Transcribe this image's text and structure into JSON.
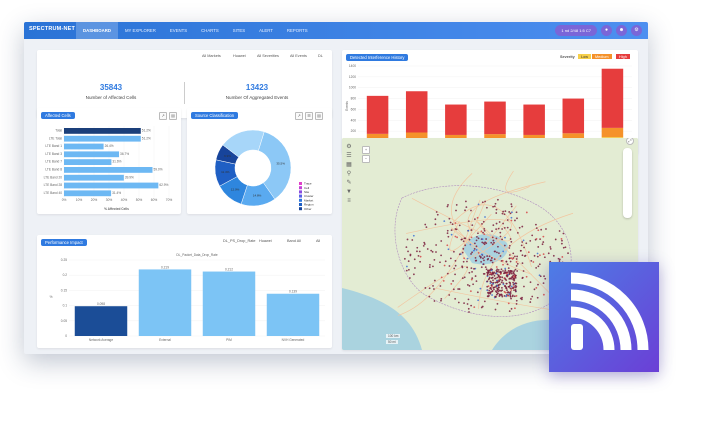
{
  "app": {
    "brand": "SPECTRUM-NET"
  },
  "nav": [
    {
      "label": "DASHBOARD",
      "active": true
    },
    {
      "label": "MY EXPLORER"
    },
    {
      "label": "EVENTS"
    },
    {
      "label": "CHARTS"
    },
    {
      "label": "SITES"
    },
    {
      "label": "ALERT"
    },
    {
      "label": "REPORTS"
    }
  ],
  "topright": {
    "date_pill": "1 nd 2/48 1:5 C7",
    "icons": [
      "bell-icon",
      "user-icon",
      "settings-icon"
    ]
  },
  "kpi": {
    "filters": [
      "All Markets",
      "Huawei",
      "All Severities",
      "All Events",
      "DL"
    ],
    "affected_cells": {
      "value": "35843",
      "label": "Number of Affected Cells"
    },
    "aggregated_events": {
      "value": "13423",
      "label": "Number Of Aggregated Events"
    }
  },
  "affected_cells_panel": {
    "title": "Affected Cells",
    "xlabel": "% Affected Cells",
    "chart_data": {
      "type": "bar",
      "orientation": "horizontal",
      "categories": [
        "Total",
        "LTE Total",
        "LTE Band 1",
        "LTE Band 3",
        "LTE Band 7",
        "LTE Band 8",
        "LTE Band 20",
        "LTE Band 28",
        "LTE Band 40"
      ],
      "values": [
        51.2,
        51.2,
        26.4,
        36.7,
        31.6,
        59.0,
        39.9,
        62.9,
        31.4
      ],
      "value_labels": [
        "51.2%",
        "51.2%",
        "26.4%",
        "36.7%",
        "31.6%",
        "59.0%",
        "39.9%",
        "62.9%",
        "31.4%"
      ],
      "xticks": [
        "0%",
        "10%",
        "20%",
        "30%",
        "40%",
        "50%",
        "60%",
        "70%"
      ],
      "xlim": [
        0,
        70
      ]
    }
  },
  "source_panel": {
    "title": "Source Classification",
    "chart_data": {
      "type": "pie",
      "slices": [
        {
          "label": "Trace",
          "value": 35.5,
          "display": "35.5%",
          "color": "#8cc8f6"
        },
        {
          "label": "Cell",
          "value": 14.8,
          "display": "14.8%",
          "color": "#5aaaf0"
        },
        {
          "label": "Site",
          "value": 12.0,
          "display": "12.0%",
          "color": "#2e86de"
        },
        {
          "label": "Cluster",
          "value": 11.4,
          "display": "11.4%",
          "color": "#1f5fc4"
        },
        {
          "label": "Market",
          "value": 6.9,
          "display": "6.9%",
          "color": "#17449b"
        },
        {
          "label": "Other",
          "value": 19.4,
          "display": "",
          "color": "#a7d6f9"
        }
      ],
      "legend": [
        "Trace",
        "Cell",
        "Site",
        "Cluster",
        "Market",
        "Region",
        "Other"
      ],
      "legend_colors": [
        "#e040c8",
        "#c43fd6",
        "#8a4be0",
        "#5a5ee6",
        "#2d78e0",
        "#1f5fc4",
        "#17449b"
      ]
    }
  },
  "interference_panel": {
    "title": "Detected Interference History",
    "severity_label": "Severity",
    "severity_levels": [
      {
        "label": "Low",
        "color": "#f6cf4a"
      },
      {
        "label": "Medium",
        "color": "#f5922a"
      },
      {
        "label": "High",
        "color": "#e63d3d"
      }
    ],
    "ylabel": "Events",
    "chart_data": {
      "type": "bar",
      "stacked": true,
      "categories": [
        "08 Jan",
        "09 Jan",
        "10 Jan",
        "11 Jan",
        "12 Jan",
        "13 Jan",
        "14 Jan"
      ],
      "series": [
        {
          "name": "Low",
          "values": [
            50,
            60,
            45,
            50,
            45,
            55,
            90
          ]
        },
        {
          "name": "Medium",
          "values": [
            100,
            115,
            85,
            95,
            85,
            105,
            170
          ]
        },
        {
          "name": "High",
          "values": [
            700,
            760,
            560,
            600,
            560,
            640,
            1090
          ]
        }
      ],
      "yticks": [
        "0",
        "200",
        "400",
        "600",
        "800",
        "1000",
        "1200",
        "1400"
      ],
      "ylim": [
        0,
        1400
      ]
    }
  },
  "performance_panel": {
    "title": "Performance Impact",
    "filters": [
      "DL_PS_Drop_Rate",
      "Huawei",
      "Band All",
      "All"
    ],
    "chart_title": "DL_Packet_Data_Drop_Rate",
    "chart_data": {
      "type": "bar",
      "categories": [
        "Network Average",
        "External",
        "PIM",
        "NVH Generated"
      ],
      "values": [
        0.098,
        0.219,
        0.212,
        0.139
      ],
      "value_labels": [
        "0.098",
        "0.219",
        "0.212",
        "0.139"
      ],
      "colors": [
        "#1b4d97",
        "#7cc4f5",
        "#7cc4f5",
        "#7cc4f5"
      ],
      "yticks": [
        "0",
        "0.05",
        "0.1",
        "0.15",
        "0.2",
        "0.25"
      ],
      "ylim": [
        0,
        0.25
      ],
      "ylabel": "%"
    }
  },
  "map_panel": {
    "scale_labels": [
      "100 km",
      "50 mi"
    ],
    "tools": [
      "settings-icon",
      "layers-icon",
      "map-icon",
      "search-icon",
      "pencil-icon",
      "filter-icon",
      "list-icon"
    ]
  }
}
